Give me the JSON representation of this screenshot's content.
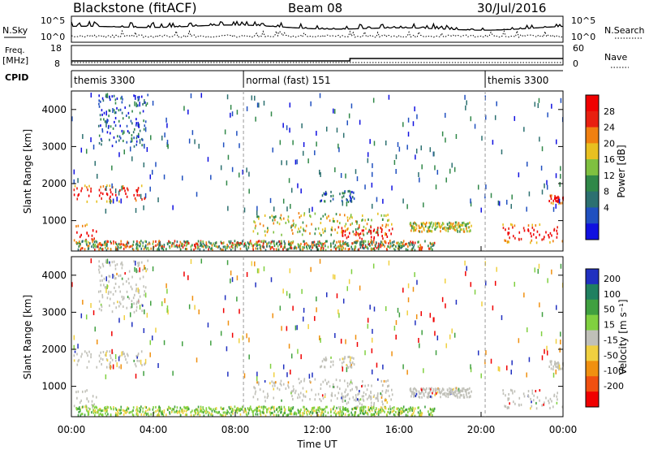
{
  "header": {
    "radar": "Blackstone (fitACF)",
    "beam": "Beam 08",
    "date": "30/Jul/2016"
  },
  "top_panels": {
    "nsky_label": "N.Sky",
    "nsearch_label": "N.Search",
    "noise_ticks": [
      "10^5",
      "10^0"
    ],
    "freq_label_line1": "Freq.",
    "freq_label_line2": "[MHz]",
    "freq_ticks": [
      "18",
      "8"
    ],
    "nave_label": "Nave",
    "nave_ticks": [
      "60",
      "0"
    ],
    "cpid_label": "CPID",
    "cpid_segments": [
      {
        "label": "themis 3300",
        "start_hour": 0
      },
      {
        "label": "normal (fast) 151",
        "start_hour": 8.4
      },
      {
        "label": "themis 3300",
        "start_hour": 20.2
      }
    ]
  },
  "chart_data": [
    {
      "type": "heatmap",
      "title": "",
      "quantity": "Power",
      "ylabel": "Slant Range [km]",
      "xlabel": "",
      "xlim": [
        0,
        24
      ],
      "ylim": [
        180,
        4500
      ],
      "yticks": [
        1000,
        2000,
        3000,
        4000
      ],
      "colorbar": {
        "label": "Power [dB]",
        "ticks": [
          "4",
          "8",
          "12",
          "16",
          "20",
          "24",
          "28"
        ],
        "colors": [
          "#1010e0",
          "#2050c0",
          "#2c7070",
          "#308848",
          "#7fc040",
          "#e8c020",
          "#f08010",
          "#e82010",
          "#f00000"
        ]
      },
      "features": [
        {
          "t": [
            0.1,
            3.6
          ],
          "range": [
            1500,
            1950
          ],
          "level": "high"
        },
        {
          "t": [
            0.1,
            1.2
          ],
          "range": [
            400,
            900
          ],
          "level": "high"
        },
        {
          "t": [
            1.3,
            3.7
          ],
          "range": [
            3000,
            4400
          ],
          "level": "low"
        },
        {
          "t": [
            8.8,
            15.5
          ],
          "range": [
            600,
            1200
          ],
          "level": "medium"
        },
        {
          "t": [
            13.0,
            15.8
          ],
          "range": [
            400,
            900
          ],
          "level": "high"
        },
        {
          "t": [
            21.0,
            24.0
          ],
          "range": [
            400,
            900
          ],
          "level": "high"
        }
      ]
    },
    {
      "type": "heatmap",
      "title": "",
      "quantity": "Velocity",
      "ylabel": "Slant Range [km]",
      "xlabel": "Time UT",
      "xlim": [
        0,
        24
      ],
      "ylim": [
        180,
        4500
      ],
      "xticks": [
        "00:00",
        "04:00",
        "08:00",
        "12:00",
        "16:00",
        "20:00",
        "00:00"
      ],
      "yticks": [
        1000,
        2000,
        3000,
        4000
      ],
      "colorbar": {
        "label": "Velocity [m s⁻¹]",
        "ticks": [
          "200",
          "100",
          "50",
          "15",
          "-15",
          "-50",
          "-100",
          "-200"
        ],
        "colors": [
          "#2030c0",
          "#208060",
          "#40a040",
          "#80d040",
          "#c0c0b8",
          "#f0d040",
          "#f09010",
          "#f05010",
          "#f00000"
        ]
      }
    }
  ]
}
